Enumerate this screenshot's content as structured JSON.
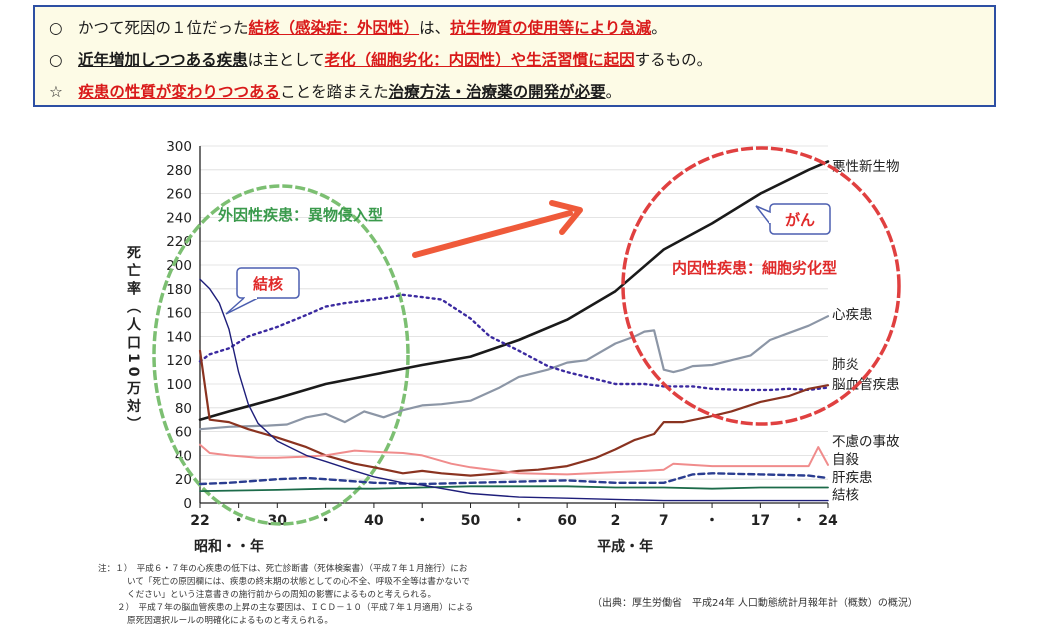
{
  "header": {
    "lines": [
      {
        "marker": "○",
        "segs": [
          {
            "t": "かつて死因の１位だった",
            "s": ""
          },
          {
            "t": "結核（感染症：外因性）",
            "s": "red u"
          },
          {
            "t": "は、",
            "s": ""
          },
          {
            "t": "抗生物質の使用等により急減",
            "s": "red u"
          },
          {
            "t": "。",
            "s": ""
          }
        ]
      },
      {
        "marker": "○",
        "segs": [
          {
            "t": "近年増加しつつある疾患",
            "s": "b u"
          },
          {
            "t": "は主として",
            "s": ""
          },
          {
            "t": "老化（細胞劣化：内因性）や生活習慣に起因",
            "s": "red u"
          },
          {
            "t": "するもの。",
            "s": ""
          }
        ]
      },
      {
        "marker": "☆",
        "segs": [
          {
            "t": "疾患の性質が変わりつつある",
            "s": "red u"
          },
          {
            "t": "ことを踏まえた",
            "s": ""
          },
          {
            "t": "治療方法・治療薬の開発が必要",
            "s": "b u"
          },
          {
            "t": "。",
            "s": ""
          }
        ]
      }
    ]
  },
  "chart_data": {
    "type": "line",
    "ylabel": "死亡率（人口10万対）",
    "ylim": [
      0,
      300
    ],
    "yticks": [
      0,
      20,
      40,
      60,
      80,
      100,
      120,
      140,
      160,
      180,
      200,
      220,
      240,
      260,
      280,
      300
    ],
    "xlim": [
      1947,
      2012
    ],
    "xticks": [
      {
        "x": 1947,
        "label": "22"
      },
      {
        "x": 1951,
        "label": "・"
      },
      {
        "x": 1955,
        "label": "30"
      },
      {
        "x": 1960,
        "label": "・"
      },
      {
        "x": 1965,
        "label": "40"
      },
      {
        "x": 1970,
        "label": "・"
      },
      {
        "x": 1975,
        "label": "50"
      },
      {
        "x": 1980,
        "label": "・"
      },
      {
        "x": 1985,
        "label": "60"
      },
      {
        "x": 1990,
        "label": "2"
      },
      {
        "x": 1995,
        "label": "7"
      },
      {
        "x": 2000,
        "label": "・"
      },
      {
        "x": 2005,
        "label": "17"
      },
      {
        "x": 2009,
        "label": "・"
      },
      {
        "x": 2012,
        "label": "24"
      }
    ],
    "era_labels": [
      {
        "x": 1950,
        "label": "昭和・・年"
      },
      {
        "x": 1991,
        "label": "平成・年"
      }
    ],
    "series": [
      {
        "name": "悪性新生物",
        "color": "#1a1a1a",
        "dash": "",
        "width": 2.6,
        "x": [
          1947,
          1950,
          1955,
          1960,
          1965,
          1970,
          1975,
          1980,
          1985,
          1990,
          1995,
          2000,
          2005,
          2010,
          2012
        ],
        "y": [
          70,
          77,
          88,
          100,
          108,
          116,
          123,
          137,
          154,
          178,
          213,
          235,
          260,
          280,
          287
        ]
      },
      {
        "name": "心疾患",
        "color": "#8c96a6",
        "dash": "",
        "width": 2.2,
        "x": [
          1947,
          1950,
          1954,
          1956,
          1958,
          1960,
          1962,
          1964,
          1966,
          1968,
          1970,
          1972,
          1975,
          1978,
          1980,
          1983,
          1985,
          1987,
          1990,
          1992,
          1993,
          1994,
          1995,
          1996,
          1997,
          1998,
          2000,
          2002,
          2004,
          2006,
          2008,
          2010,
          2012
        ],
        "y": [
          62,
          64,
          65,
          66,
          72,
          75,
          68,
          77,
          72,
          78,
          82,
          83,
          86,
          97,
          106,
          112,
          118,
          120,
          134,
          140,
          144,
          145,
          112,
          110,
          112,
          115,
          116,
          120,
          124,
          137,
          143,
          149,
          157
        ]
      },
      {
        "name": "肺炎",
        "color": "#3b2aa0",
        "dash": "2,4",
        "width": 2.4,
        "x": [
          1947,
          1948,
          1950,
          1952,
          1955,
          1958,
          1960,
          1962,
          1964,
          1966,
          1968,
          1970,
          1972,
          1975,
          1977,
          1980,
          1983,
          1985,
          1988,
          1990,
          1993,
          1995,
          1998,
          2000,
          2003,
          2006,
          2008,
          2010,
          2012
        ],
        "y": [
          119,
          125,
          130,
          140,
          148,
          158,
          165,
          168,
          170,
          172,
          175,
          173,
          171,
          155,
          140,
          128,
          115,
          110,
          104,
          100,
          100,
          98,
          98,
          96,
          95,
          95,
          96,
          95,
          97
        ]
      },
      {
        "name": "脳血管疾患",
        "color": "#8a3320",
        "dash": "",
        "width": 2.2,
        "x": [
          1947,
          1948,
          1950,
          1952,
          1955,
          1958,
          1960,
          1963,
          1965,
          1968,
          1970,
          1972,
          1975,
          1978,
          1980,
          1982,
          1985,
          1988,
          1990,
          1992,
          1994,
          1995,
          1997,
          2000,
          2002,
          2005,
          2008,
          2010,
          2012
        ],
        "y": [
          128,
          70,
          68,
          62,
          55,
          47,
          40,
          33,
          30,
          25,
          27,
          25,
          23,
          25,
          27,
          28,
          31,
          38,
          45,
          53,
          58,
          68,
          68,
          73,
          77,
          85,
          90,
          96,
          99
        ]
      },
      {
        "name": "不慮の事故",
        "color": "#f08c8c",
        "dash": "",
        "width": 2.0,
        "x": [
          1947,
          1948,
          1950,
          1953,
          1955,
          1958,
          1960,
          1963,
          1965,
          1968,
          1970,
          1973,
          1975,
          1978,
          1980,
          1985,
          1990,
          1993,
          1995,
          1996,
          2000,
          2005,
          2010,
          2011,
          2012
        ],
        "y": [
          49,
          42,
          40,
          38,
          38,
          39,
          40,
          44,
          43,
          42,
          40,
          33,
          30,
          27,
          25,
          24,
          26,
          27,
          28,
          33,
          31,
          31,
          31,
          47,
          32
        ]
      },
      {
        "name": "自殺",
        "color": "#2a3d90",
        "dash": "6,4",
        "width": 2.4,
        "x": [
          1947,
          1950,
          1955,
          1958,
          1960,
          1965,
          1970,
          1975,
          1980,
          1985,
          1990,
          1995,
          1998,
          2000,
          2005,
          2010,
          2012
        ],
        "y": [
          16,
          17,
          20,
          21,
          20,
          17,
          16,
          17,
          18,
          19,
          17,
          17,
          24,
          25,
          24,
          23,
          21
        ]
      },
      {
        "name": "肝疾患",
        "color": "#1c6b4a",
        "dash": "",
        "width": 1.8,
        "x": [
          1947,
          1955,
          1960,
          1965,
          1970,
          1975,
          1980,
          1985,
          1990,
          1995,
          2000,
          2005,
          2010,
          2012
        ],
        "y": [
          10,
          11,
          12,
          12,
          13,
          14,
          14,
          14,
          13,
          13,
          12,
          13,
          13,
          13
        ]
      },
      {
        "name": "結核",
        "color": "#1e1e7a",
        "dash": "",
        "width": 1.4,
        "x": [
          1947,
          1948,
          1949,
          1950,
          1951,
          1952,
          1953,
          1955,
          1958,
          1960,
          1963,
          1965,
          1968,
          1970,
          1975,
          1980,
          1985,
          1990,
          1995,
          2000,
          2005,
          2010,
          2012
        ],
        "y": [
          188,
          180,
          168,
          146,
          110,
          83,
          67,
          52,
          40,
          35,
          27,
          22,
          17,
          15,
          8,
          5,
          4,
          3,
          2,
          2,
          2,
          2,
          2
        ]
      }
    ],
    "label_positions": [
      {
        "name": "悪性新生物",
        "y": 283
      },
      {
        "name": "心疾患",
        "y": 159
      },
      {
        "name": "肺炎",
        "y": 117
      },
      {
        "name": "脳血管疾患",
        "y": 100
      },
      {
        "name": "不慮の事故",
        "y": 52
      },
      {
        "name": "自殺",
        "y": 37
      },
      {
        "name": "肝疾患",
        "y": 22
      },
      {
        "name": "結核",
        "y": 7
      }
    ]
  },
  "annotations": {
    "external_type": "外因性疾患：異物侵入型",
    "internal_type": "内因性疾患：細胞劣化型",
    "tb_callout": "結核",
    "cancer_callout": "がん"
  },
  "notes": {
    "n1a": "注：１）　平成６・７年の心疾患の低下は、死亡診断書（死体検案書）（平成７年１月施行）にお",
    "n1b": "いて「死亡の原因欄には、疾患の終末期の状態としての心不全、呼吸不全等は書かないで",
    "n1c": "ください」という注意書きの施行前からの周知の影響によるものと考えられる。",
    "n2a": "２）　平成７年の脳血管疾患の上昇の主な要因は、ＩＣＤ－１０（平成７年１月適用）による",
    "n2b": "原死因選択ルールの明確化によるものと考えられる。",
    "source": "（出典：厚生労働省　平成24年 人口動態統計月報年計（概数）の概況）"
  }
}
